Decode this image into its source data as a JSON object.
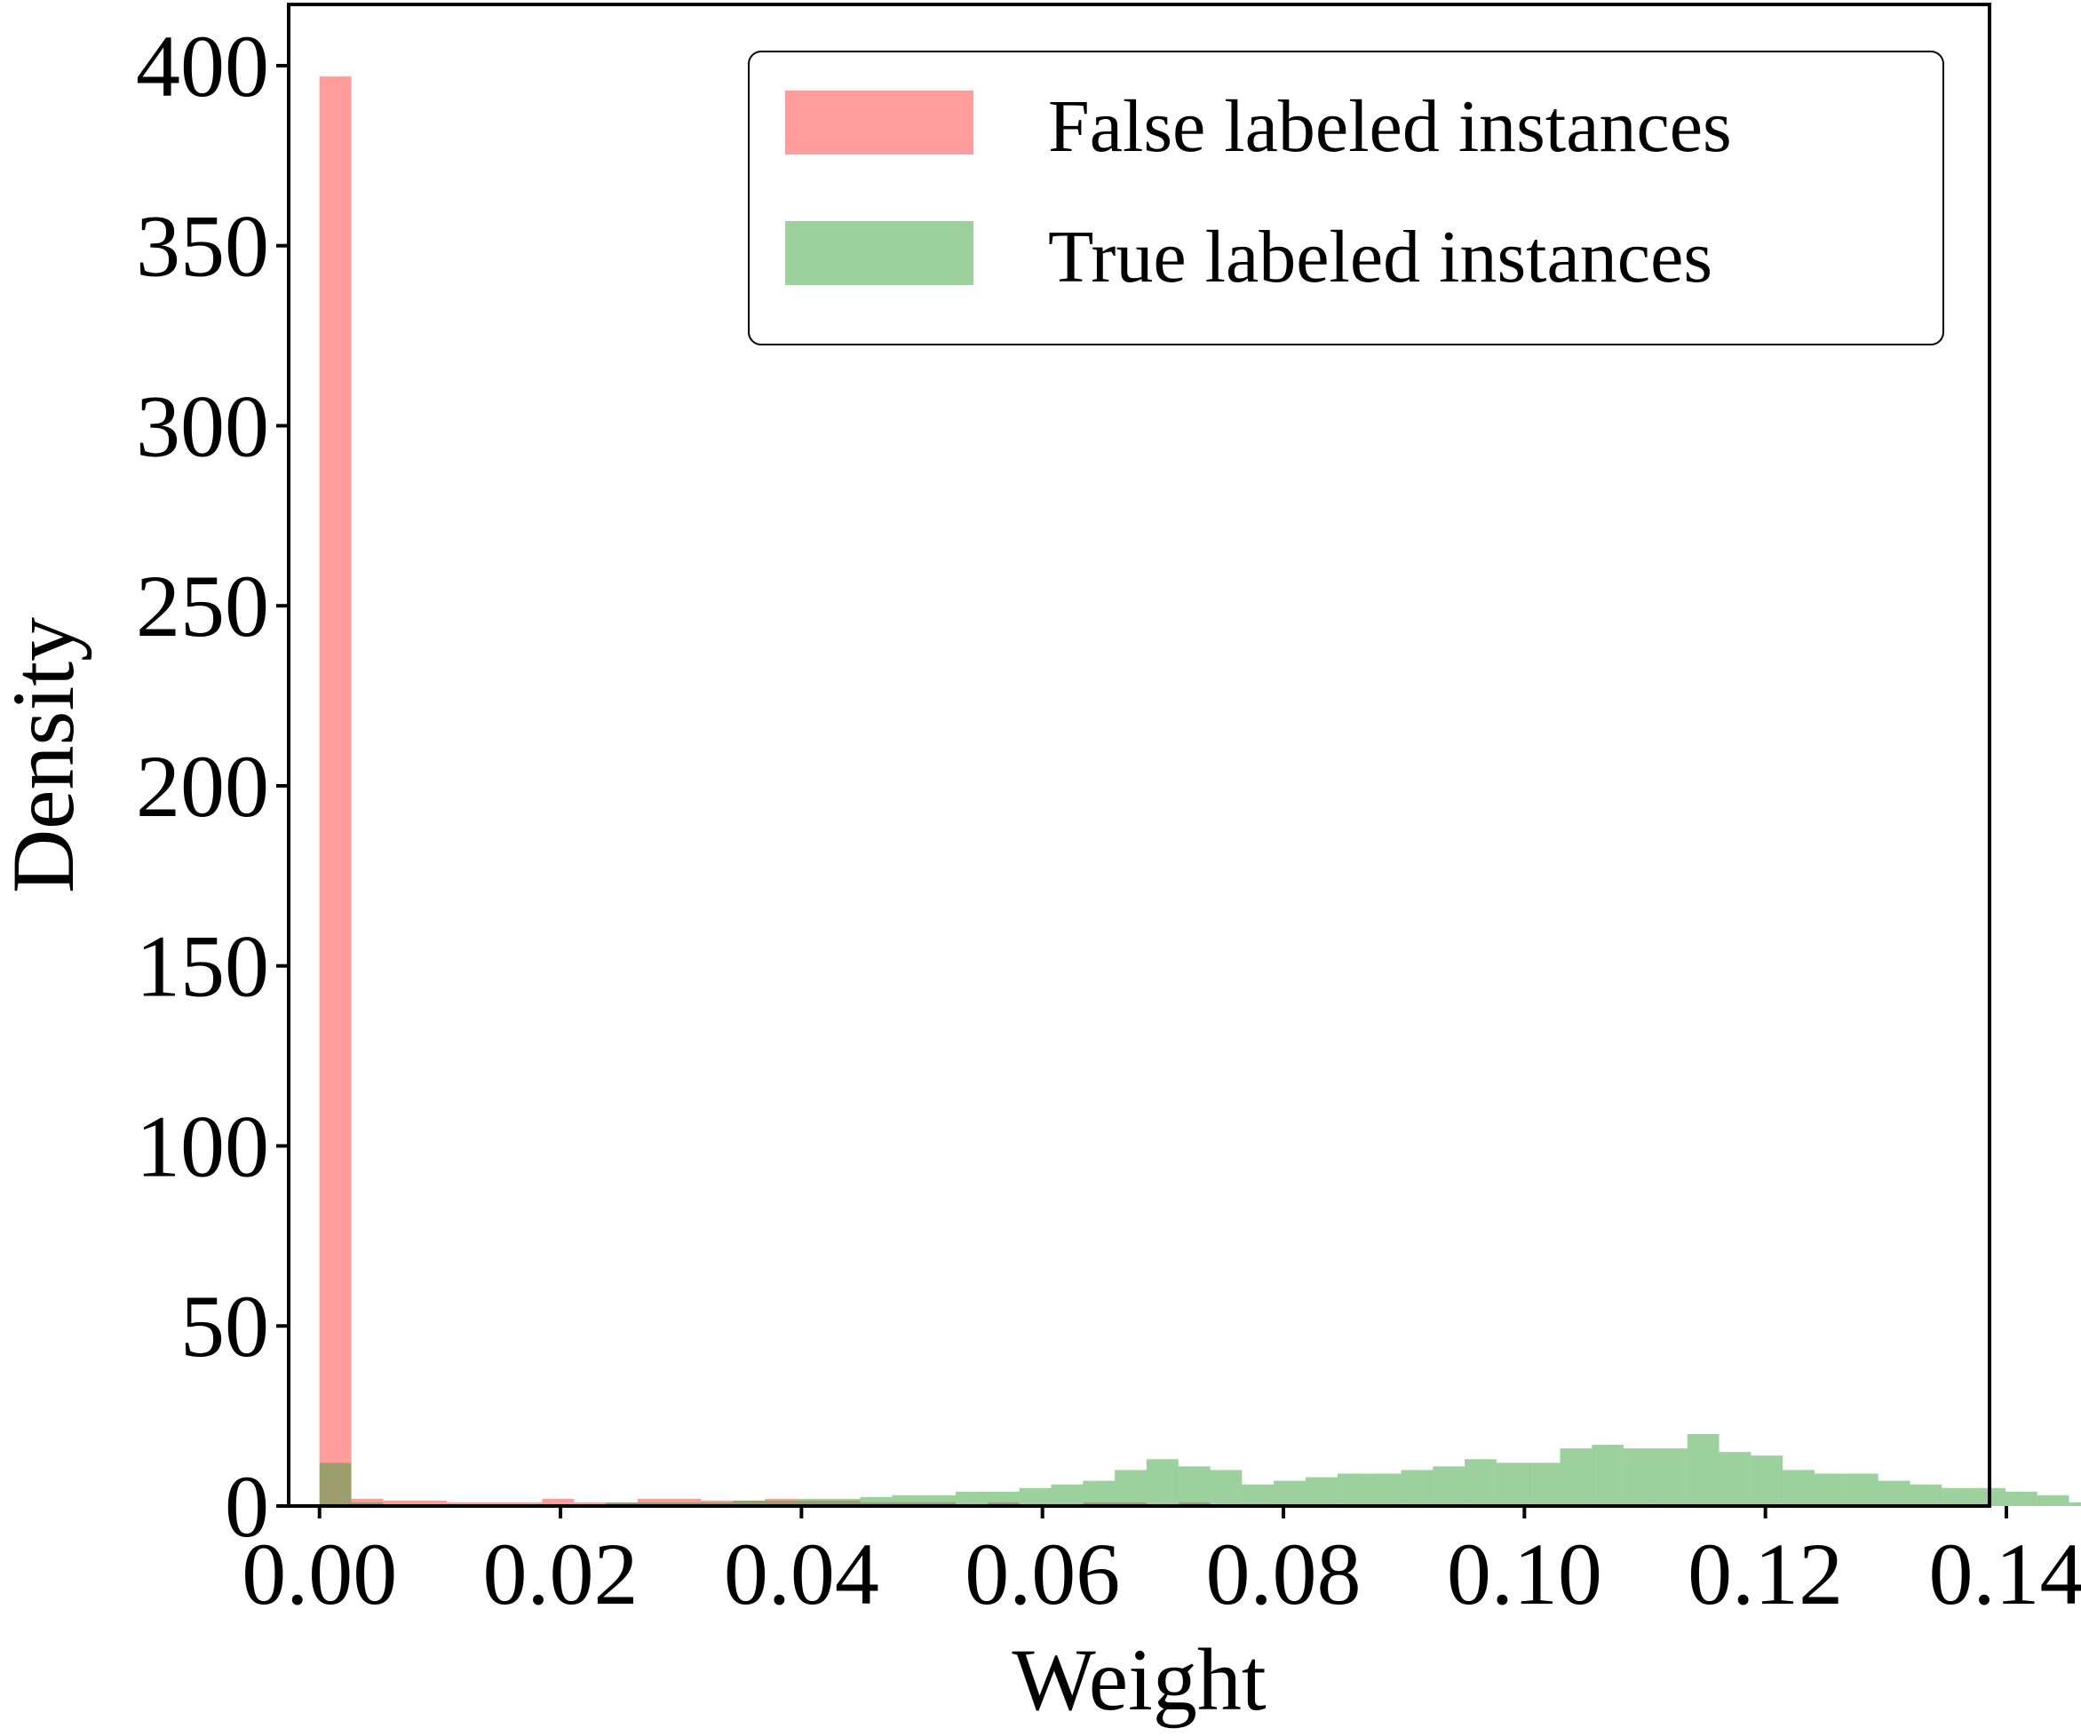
{
  "chart_data": {
    "type": "bar",
    "subtype": "overlaid-histogram",
    "xlabel": "Weight",
    "ylabel": "Density",
    "xlim": [
      -0.00256,
      0.1386
    ],
    "ylim": [
      0,
      417
    ],
    "xticks": [
      0.0,
      0.02,
      0.04,
      0.06,
      0.08,
      0.1,
      0.12,
      0.14
    ],
    "xtick_labels": [
      "0.00",
      "0.02",
      "0.04",
      "0.06",
      "0.08",
      "0.10",
      "0.12",
      "0.14"
    ],
    "yticks": [
      0,
      50,
      100,
      150,
      200,
      250,
      300,
      350,
      400
    ],
    "ytick_labels": [
      "0",
      "50",
      "100",
      "150",
      "200",
      "250",
      "300",
      "350",
      "400"
    ],
    "grid": false,
    "legend_position": "upper-right",
    "bin_width": 0.00264,
    "series": [
      {
        "name": "False labeled instances",
        "color": "#ff4d4d",
        "opacity": 0.55,
        "bins_start": 0.0,
        "values": [
          397,
          2,
          1.5,
          1.5,
          1,
          1,
          1,
          2,
          1,
          1,
          2,
          2,
          1.5,
          1.5,
          2,
          1.5,
          1.5,
          1,
          1,
          1,
          0.5,
          1,
          0.5,
          0.5,
          1,
          1,
          0.5,
          1,
          0,
          0.5,
          0,
          0,
          0,
          0,
          0,
          0,
          0,
          0,
          0,
          0,
          0,
          0,
          0,
          0,
          0,
          0,
          0,
          0,
          0,
          0,
          0,
          0
        ]
      },
      {
        "name": "True labeled instances",
        "color": "#3aa23a",
        "opacity": 0.5,
        "bins_start": 0.0,
        "values": [
          12,
          1,
          0.5,
          0.5,
          0.5,
          0.5,
          0.5,
          0.5,
          0.5,
          1,
          1,
          1,
          1,
          1.5,
          1.5,
          2,
          2,
          2.5,
          3,
          3,
          4,
          4,
          5,
          6,
          7,
          10,
          13,
          11,
          10,
          6,
          7,
          8,
          9,
          9,
          10,
          11,
          13,
          12,
          12,
          16,
          17,
          16,
          16,
          20,
          15,
          14,
          10,
          9,
          9,
          7,
          6,
          5,
          5,
          4,
          3,
          1
        ]
      }
    ]
  }
}
